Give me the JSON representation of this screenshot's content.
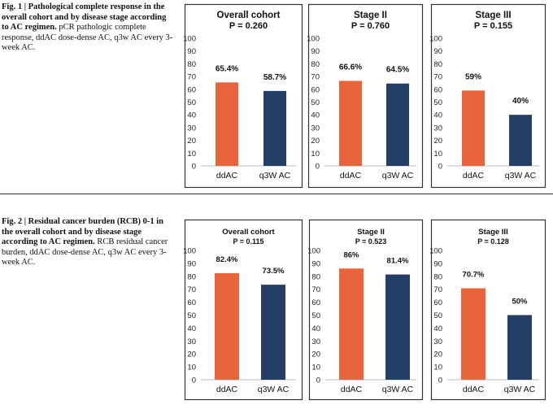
{
  "figures": [
    {
      "caption_title": "Fig. 1 | Pathological complete response in the overall cohort and by disease stage according to AC regimen.",
      "caption_text": "pCR pathologic complete response, ddAC dose-dense AC, q3w AC every 3-week AC."
    },
    {
      "caption_title": "Fig. 2 | Residual cancer burden (RCB) 0-1 in the overall cohort and by disease stage according to AC regimen.",
      "caption_text": "RCB residual cancer burden, ddAC dose-dense AC, q3w AC every 3-week AC."
    }
  ],
  "colors": {
    "ddAC": "#e8643a",
    "q3wAC": "#243f66",
    "frame": "#333333"
  },
  "chart_data": [
    {
      "figure": 1,
      "type": "bar",
      "title": "Overall cohort",
      "subtitle": "P = 0.260",
      "categories": [
        "ddAC",
        "q3W AC"
      ],
      "values": [
        65.4,
        58.7
      ],
      "labels": [
        "65.4%",
        "58.7%"
      ],
      "ylim": [
        0,
        100
      ],
      "yticks": [
        0,
        10,
        20,
        30,
        40,
        50,
        60,
        70,
        80,
        90,
        100
      ]
    },
    {
      "figure": 1,
      "type": "bar",
      "title": "Stage II",
      "subtitle": "P = 0.760",
      "categories": [
        "ddAC",
        "q3W AC"
      ],
      "values": [
        66.6,
        64.5
      ],
      "labels": [
        "66.6%",
        "64.5%"
      ],
      "ylim": [
        0,
        100
      ],
      "yticks": [
        0,
        10,
        20,
        30,
        40,
        50,
        60,
        70,
        80,
        90,
        100
      ]
    },
    {
      "figure": 1,
      "type": "bar",
      "title": "Stage III",
      "subtitle": "P = 0.155",
      "categories": [
        "ddAC",
        "q3W AC"
      ],
      "values": [
        59,
        40
      ],
      "labels": [
        "59%",
        "40%"
      ],
      "ylim": [
        0,
        100
      ],
      "yticks": [
        0,
        10,
        20,
        30,
        40,
        50,
        60,
        70,
        80,
        90,
        100
      ]
    },
    {
      "figure": 2,
      "type": "bar",
      "title": "Overall cohort",
      "subtitle": "P = 0.115",
      "categories": [
        "ddAC",
        "q3W AC"
      ],
      "values": [
        82.4,
        73.5
      ],
      "labels": [
        "82.4%",
        "73.5%"
      ],
      "ylim": [
        0,
        100
      ],
      "yticks": [
        0,
        10,
        20,
        30,
        40,
        50,
        60,
        70,
        80,
        90,
        100
      ]
    },
    {
      "figure": 2,
      "type": "bar",
      "title": "Stage II",
      "subtitle": "P = 0.523",
      "categories": [
        "ddAC",
        "q3W AC"
      ],
      "values": [
        86,
        81.4
      ],
      "labels": [
        "86%",
        "81.4%"
      ],
      "ylim": [
        0,
        100
      ],
      "yticks": [
        0,
        10,
        20,
        30,
        40,
        50,
        60,
        70,
        80,
        90,
        100
      ]
    },
    {
      "figure": 2,
      "type": "bar",
      "title": "Stage III",
      "subtitle": "P = 0.128",
      "categories": [
        "ddAC",
        "q3W AC"
      ],
      "values": [
        70.7,
        50
      ],
      "labels": [
        "70.7%",
        "50%"
      ],
      "ylim": [
        0,
        100
      ],
      "yticks": [
        0,
        10,
        20,
        30,
        40,
        50,
        60,
        70,
        80,
        90,
        100
      ]
    }
  ]
}
